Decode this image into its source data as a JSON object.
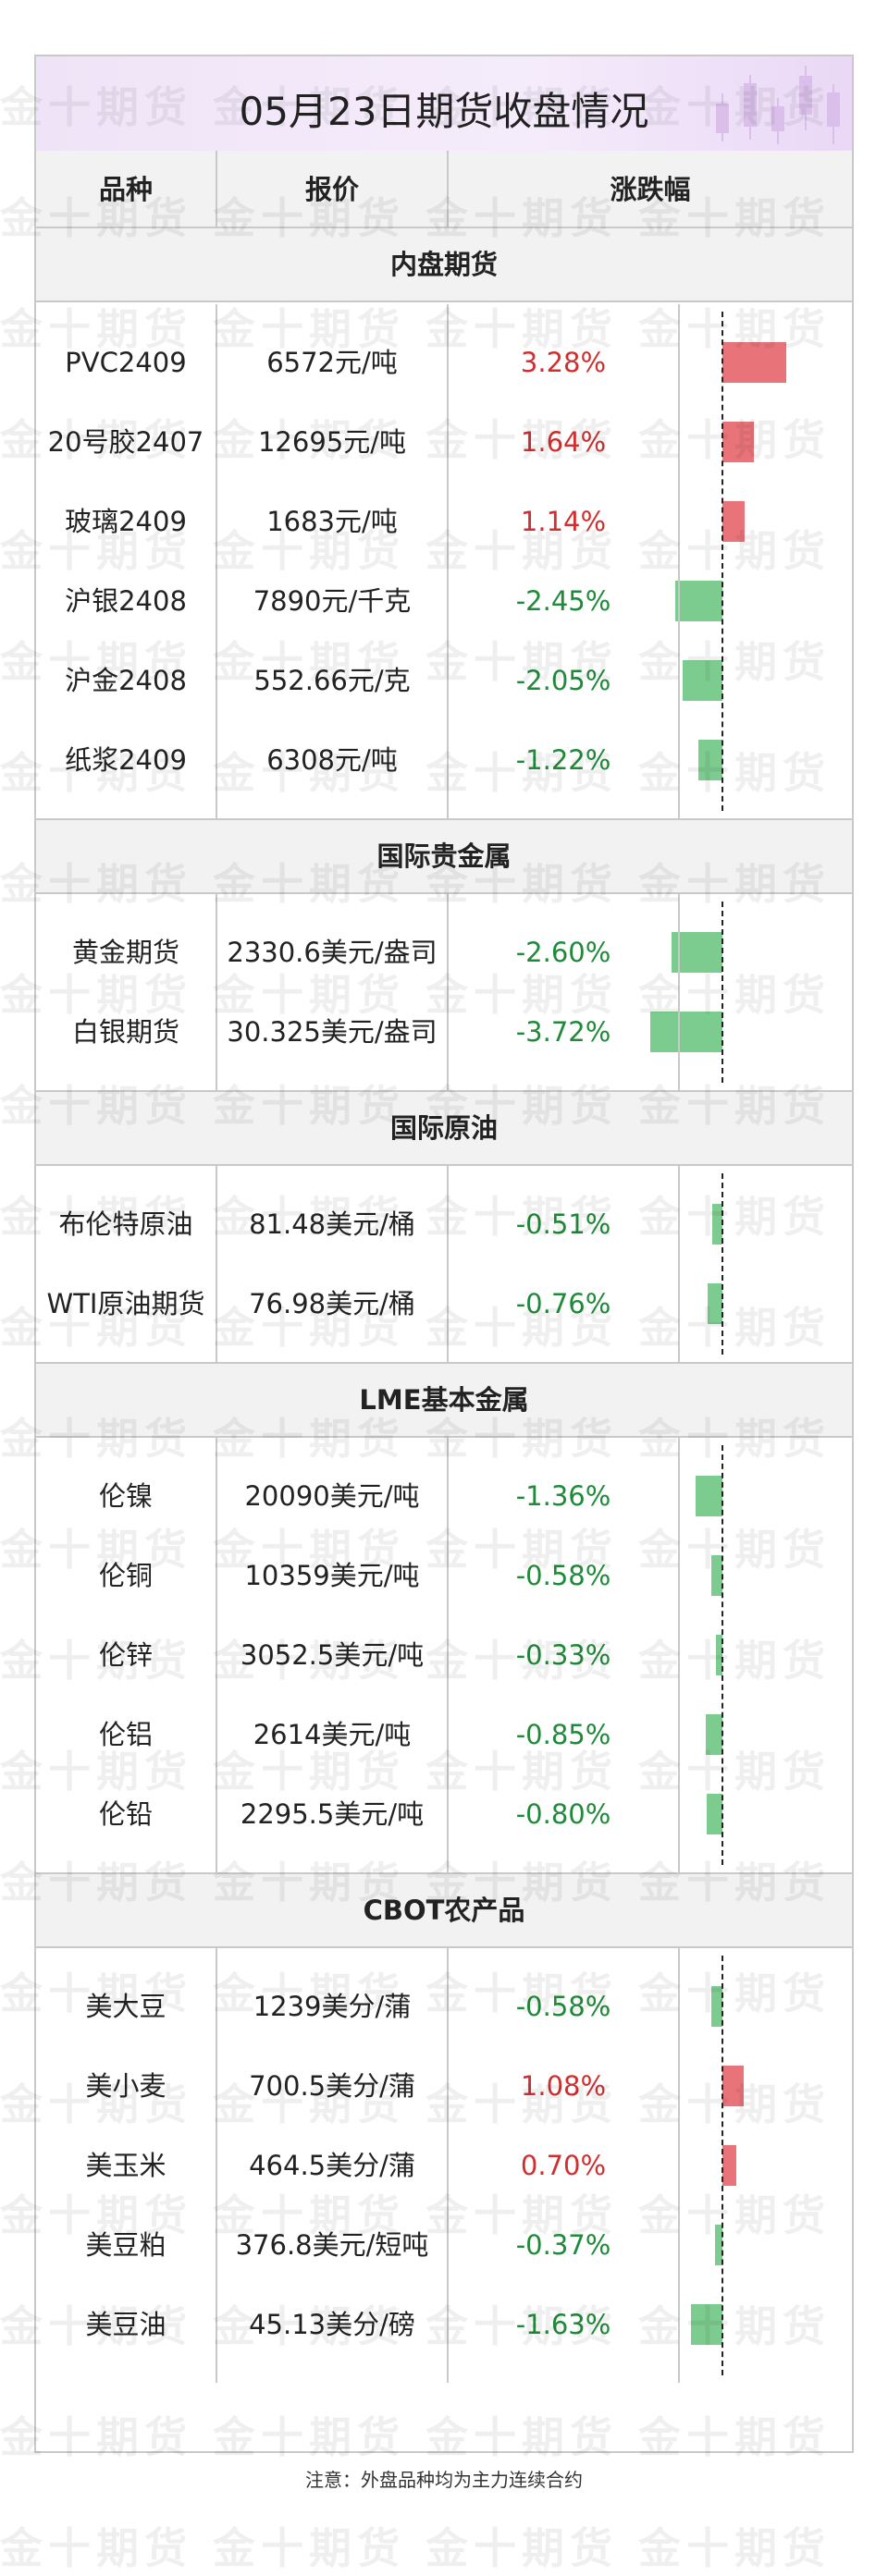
{
  "title": "05月23日期货收盘情况",
  "header": {
    "name": "品种",
    "price": "报价",
    "change": "涨跌幅"
  },
  "sections": [
    {
      "name": "内盘期货",
      "rows": [
        {
          "name": "PVC2409",
          "price": "6572元/吨",
          "change": "3.28%",
          "value": 3.28
        },
        {
          "name": "20号胶2407",
          "price": "12695元/吨",
          "change": "1.64%",
          "value": 1.64
        },
        {
          "name": "玻璃2409",
          "price": "1683元/吨",
          "change": "1.14%",
          "value": 1.14
        },
        {
          "name": "沪银2408",
          "price": "7890元/千克",
          "change": "-2.45%",
          "value": -2.45
        },
        {
          "name": "沪金2408",
          "price": "552.66元/克",
          "change": "-2.05%",
          "value": -2.05
        },
        {
          "name": "纸浆2409",
          "price": "6308元/吨",
          "change": "-1.22%",
          "value": -1.22
        }
      ]
    },
    {
      "name": "国际贵金属",
      "rows": [
        {
          "name": "黄金期货",
          "price": "2330.6美元/盎司",
          "change": "-2.60%",
          "value": -2.6
        },
        {
          "name": "白银期货",
          "price": "30.325美元/盎司",
          "change": "-3.72%",
          "value": -3.72
        }
      ]
    },
    {
      "name": "国际原油",
      "rows": [
        {
          "name": "布伦特原油",
          "price": "81.48美元/桶",
          "change": "-0.51%",
          "value": -0.51
        },
        {
          "name": "WTI原油期货",
          "price": "76.98美元/桶",
          "change": "-0.76%",
          "value": -0.76
        }
      ]
    },
    {
      "name": "LME基本金属",
      "rows": [
        {
          "name": "伦镍",
          "price": "20090美元/吨",
          "change": "-1.36%",
          "value": -1.36
        },
        {
          "name": "伦铜",
          "price": "10359美元/吨",
          "change": "-0.58%",
          "value": -0.58
        },
        {
          "name": "伦锌",
          "price": "3052.5美元/吨",
          "change": "-0.33%",
          "value": -0.33
        },
        {
          "name": "伦铝",
          "price": "2614美元/吨",
          "change": "-0.85%",
          "value": -0.85
        },
        {
          "name": "伦铅",
          "price": "2295.5美元/吨",
          "change": "-0.80%",
          "value": -0.8
        }
      ]
    },
    {
      "name": "CBOT农产品",
      "rows": [
        {
          "name": "美大豆",
          "price": "1239美分/蒲",
          "change": "-0.58%",
          "value": -0.58
        },
        {
          "name": "美小麦",
          "price": "700.5美分/蒲",
          "change": "1.08%",
          "value": 1.08
        },
        {
          "name": "美玉米",
          "price": "464.5美分/蒲",
          "change": "0.70%",
          "value": 0.7
        },
        {
          "name": "美豆粕",
          "price": "376.8美元/短吨",
          "change": "-0.37%",
          "value": -0.37
        },
        {
          "name": "美豆油",
          "price": "45.13美分/磅",
          "change": "-1.63%",
          "value": -1.63
        }
      ]
    }
  ],
  "note": "注意：外盘品种均为主力连续合约",
  "watermark": "金十期货",
  "colors": {
    "up": "#d12f2f",
    "down": "#1f8a3a",
    "bar_up": "#e8747a",
    "bar_down": "#7dcc8f",
    "header_bg": "#f2f2f2"
  },
  "chart_data": {
    "type": "bar",
    "orientation": "horizontal",
    "categories": [
      "PVC2409",
      "20号胶2407",
      "玻璃2409",
      "沪银2408",
      "沪金2408",
      "纸浆2409",
      "黄金期货",
      "白银期货",
      "布伦特原油",
      "WTI原油期货",
      "伦镍",
      "伦铜",
      "伦锌",
      "伦铝",
      "伦铅",
      "美大豆",
      "美小麦",
      "美玉米",
      "美豆粕",
      "美豆油"
    ],
    "values": [
      3.28,
      1.64,
      1.14,
      -2.45,
      -2.05,
      -1.22,
      -2.6,
      -3.72,
      -0.51,
      -0.76,
      -1.36,
      -0.58,
      -0.33,
      -0.85,
      -0.8,
      -0.58,
      1.08,
      0.7,
      -0.37,
      -1.63
    ],
    "unit": "%",
    "xlim": [
      -3.72,
      3.28
    ]
  }
}
